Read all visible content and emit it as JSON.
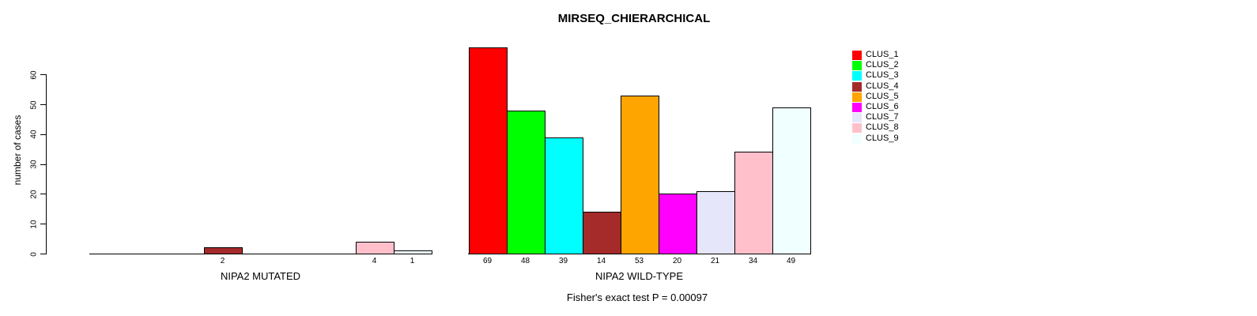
{
  "chart_data": {
    "type": "bar",
    "title": "MIRSEQ_CHIERARCHICAL",
    "ylabel": "number of cases",
    "xlabel": "",
    "ylim": [
      0,
      60
    ],
    "yticks": [
      0,
      10,
      20,
      30,
      40,
      50,
      60
    ],
    "grid": false,
    "bar_value_labels": "shown under each non-zero bar",
    "categories": [
      "CLUS_1",
      "CLUS_2",
      "CLUS_3",
      "CLUS_4",
      "CLUS_5",
      "CLUS_6",
      "CLUS_7",
      "CLUS_8",
      "CLUS_9"
    ],
    "groups": [
      {
        "label": "NIPA2 MUTATED",
        "values": [
          0,
          0,
          0,
          2,
          0,
          0,
          0,
          4,
          1
        ]
      },
      {
        "label": "NIPA2 WILD-TYPE",
        "values": [
          69,
          48,
          39,
          14,
          53,
          20,
          21,
          34,
          49
        ]
      }
    ],
    "legend": {
      "position": "top-right",
      "entries": [
        {
          "label": "CLUS_1",
          "color": "#FF0000"
        },
        {
          "label": "CLUS_2",
          "color": "#00FF00"
        },
        {
          "label": "CLUS_3",
          "color": "#00FFFF"
        },
        {
          "label": "CLUS_4",
          "color": "#A52A2A"
        },
        {
          "label": "CLUS_5",
          "color": "#FFA500"
        },
        {
          "label": "CLUS_6",
          "color": "#FF00FF"
        },
        {
          "label": "CLUS_7",
          "color": "#E6E6FA"
        },
        {
          "label": "CLUS_8",
          "color": "#FFC0CB"
        },
        {
          "label": "CLUS_9",
          "color": "#F0FFFF"
        }
      ]
    },
    "annotation": "Fisher's exact test P = 0.00097"
  },
  "colors": {
    "background": "#FFFFFF",
    "text": "#000000",
    "axis": "#000000"
  }
}
